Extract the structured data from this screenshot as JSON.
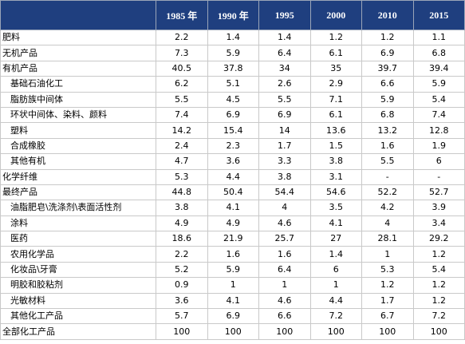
{
  "table": {
    "header": [
      "1985 年",
      "1990 年",
      "1995",
      "2000",
      "2010",
      "2015"
    ],
    "rows": [
      {
        "label": "肥料",
        "indent": false,
        "values": [
          "2.2",
          "1.4",
          "1.4",
          "1.2",
          "1.2",
          "1.1"
        ]
      },
      {
        "label": "无机产品",
        "indent": false,
        "values": [
          "7.3",
          "5.9",
          "6.4",
          "6.1",
          "6.9",
          "6.8"
        ]
      },
      {
        "label": "有机产品",
        "indent": false,
        "values": [
          "40.5",
          "37.8",
          "34",
          "35",
          "39.7",
          "39.4"
        ]
      },
      {
        "label": "基础石油化工",
        "indent": true,
        "values": [
          "6.2",
          "5.1",
          "2.6",
          "2.9",
          "6.6",
          "5.9"
        ]
      },
      {
        "label": "脂肪族中间体",
        "indent": true,
        "values": [
          "5.5",
          "4.5",
          "5.5",
          "7.1",
          "5.9",
          "5.4"
        ]
      },
      {
        "label": "环状中间体、染料、颜料",
        "indent": true,
        "values": [
          "7.4",
          "6.9",
          "6.9",
          "6.1",
          "6.8",
          "7.4"
        ]
      },
      {
        "label": "塑料",
        "indent": true,
        "values": [
          "14.2",
          "15.4",
          "14",
          "13.6",
          "13.2",
          "12.8"
        ]
      },
      {
        "label": "合成橡胶",
        "indent": true,
        "values": [
          "2.4",
          "2.3",
          "1.7",
          "1.5",
          "1.6",
          "1.9"
        ]
      },
      {
        "label": "其他有机",
        "indent": true,
        "values": [
          "4.7",
          "3.6",
          "3.3",
          "3.8",
          "5.5",
          "6"
        ]
      },
      {
        "label": "化学纤维",
        "indent": false,
        "values": [
          "5.3",
          "4.4",
          "3.8",
          "3.1",
          "-",
          "-"
        ]
      },
      {
        "label": "最终产品",
        "indent": false,
        "values": [
          "44.8",
          "50.4",
          "54.4",
          "54.6",
          "52.2",
          "52.7"
        ]
      },
      {
        "label": "油脂肥皂\\洗涤剂\\表面活性剂",
        "indent": true,
        "values": [
          "3.8",
          "4.1",
          "4",
          "3.5",
          "4.2",
          "3.9"
        ]
      },
      {
        "label": "涂料",
        "indent": true,
        "values": [
          "4.9",
          "4.9",
          "4.6",
          "4.1",
          "4",
          "3.4"
        ]
      },
      {
        "label": "医药",
        "indent": true,
        "values": [
          "18.6",
          "21.9",
          "25.7",
          "27",
          "28.1",
          "29.2"
        ]
      },
      {
        "label": "农用化学品",
        "indent": true,
        "values": [
          "2.2",
          "1.6",
          "1.6",
          "1.4",
          "1",
          "1.2"
        ]
      },
      {
        "label": "化妆品\\牙膏",
        "indent": true,
        "values": [
          "5.2",
          "5.9",
          "6.4",
          "6",
          "5.3",
          "5.4"
        ]
      },
      {
        "label": "明胶和胶粘剂",
        "indent": true,
        "values": [
          "0.9",
          "1",
          "1",
          "1",
          "1.2",
          "1.2"
        ]
      },
      {
        "label": "光敏材料",
        "indent": true,
        "values": [
          "3.6",
          "4.1",
          "4.6",
          "4.4",
          "1.7",
          "1.2"
        ]
      },
      {
        "label": "其他化工产品",
        "indent": true,
        "values": [
          "5.7",
          "6.9",
          "6.6",
          "7.2",
          "6.7",
          "7.2"
        ]
      },
      {
        "label": "全部化工产品",
        "indent": false,
        "values": [
          "100",
          "100",
          "100",
          "100",
          "100",
          "100"
        ]
      }
    ]
  }
}
